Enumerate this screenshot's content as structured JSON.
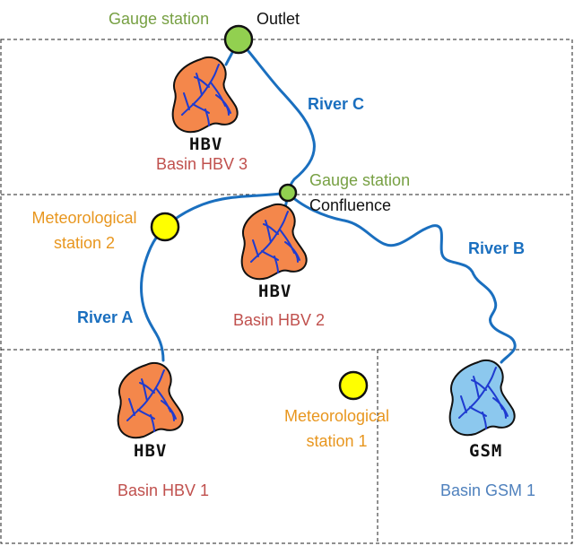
{
  "labels": {
    "gauge_top": "Gauge station",
    "outlet": "Outlet",
    "river_c": "River C",
    "gauge_mid": "Gauge station",
    "confluence": "Confluence",
    "met2_line1": "Meteorological",
    "met2_line2": "station 2",
    "river_b": "River B",
    "river_a": "River A",
    "met1_line1": "Meteorological",
    "met1_line2": "station 1"
  },
  "basins": [
    {
      "model": "HBV",
      "name": "Basin HBV 3"
    },
    {
      "model": "HBV",
      "name": "Basin HBV 2"
    },
    {
      "model": "HBV",
      "name": "Basin HBV 1"
    },
    {
      "model": "GSM",
      "name": "Basin GSM 1"
    }
  ],
  "colors": {
    "river": "#1A6FBF",
    "hbv_basin_fill": "#F4874B",
    "gsm_basin_fill": "#8CC8EE",
    "gauge": "#92D050",
    "meteo": "#FFFF00",
    "gauge_text": "#77A043",
    "meteo_text": "#E8961E",
    "hbv_text": "#C0504D",
    "gsm_text": "#4F81BD"
  },
  "icons": [
    "basin-icon",
    "gauge-station-icon",
    "meteorological-station-icon"
  ]
}
